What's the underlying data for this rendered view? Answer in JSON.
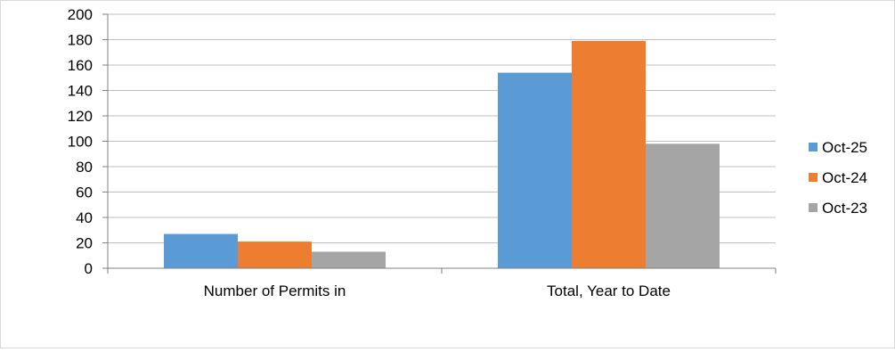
{
  "chart_data": {
    "type": "bar",
    "categories": [
      "Number of Permits in",
      "Total, Year to Date"
    ],
    "series": [
      {
        "name": "Oct-25",
        "color": "#5b9bd5",
        "values": [
          27,
          154
        ]
      },
      {
        "name": "Oct-24",
        "color": "#ed7d31",
        "values": [
          21,
          179
        ]
      },
      {
        "name": "Oct-23",
        "color": "#a5a5a5",
        "values": [
          13,
          98
        ]
      }
    ],
    "yticks": [
      "0",
      "20",
      "40",
      "60",
      "80",
      "100",
      "120",
      "140",
      "160",
      "180",
      "200"
    ],
    "ylim": [
      0,
      200
    ],
    "grid": true,
    "legend_position": "right"
  }
}
